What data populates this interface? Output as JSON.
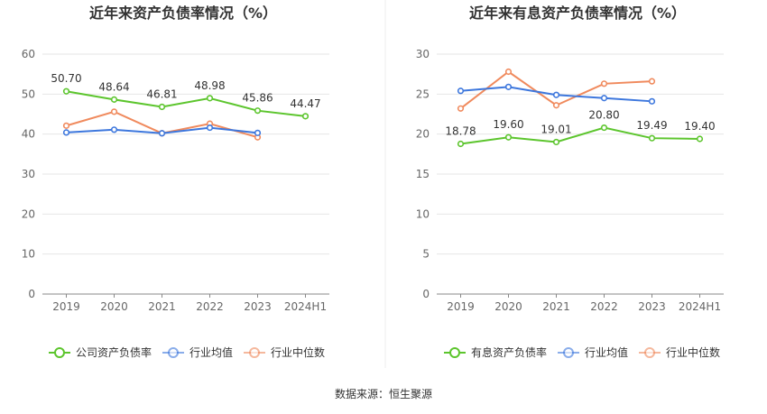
{
  "footer": {
    "source_text": "数据来源：恒生聚源"
  },
  "colors": {
    "company": "#5cc52d",
    "industry_avg": "#3d77dd",
    "industry_median": "#f08a5d"
  },
  "chart_data": [
    {
      "type": "line",
      "title": "近年来资产负债率情况（%）",
      "categories": [
        "2019",
        "2020",
        "2021",
        "2022",
        "2023",
        "2024H1"
      ],
      "yticks": [
        "0",
        "10",
        "20",
        "30",
        "40",
        "50",
        "60"
      ],
      "ylim": [
        0,
        60
      ],
      "grid": true,
      "legend": "bottom",
      "series": [
        {
          "name": "公司资产负债率",
          "values": [
            50.7,
            48.64,
            46.81,
            48.98,
            45.86,
            44.47
          ],
          "labels": [
            "50.70",
            "48.64",
            "46.81",
            "48.98",
            "45.86",
            "44.47"
          ],
          "color": "#5cc52d"
        },
        {
          "name": "行业均值",
          "values": [
            40.4,
            41.1,
            40.2,
            41.6,
            40.3,
            null
          ],
          "color": "#3d77dd"
        },
        {
          "name": "行业中位数",
          "values": [
            42.1,
            45.6,
            40.2,
            42.6,
            39.2,
            null
          ],
          "color": "#f08a5d"
        }
      ]
    },
    {
      "type": "line",
      "title": "近年来有息资产负债率情况（%）",
      "categories": [
        "2019",
        "2020",
        "2021",
        "2022",
        "2023",
        "2024H1"
      ],
      "yticks": [
        "0",
        "5",
        "10",
        "15",
        "20",
        "25",
        "30"
      ],
      "ylim": [
        0,
        30
      ],
      "grid": true,
      "legend": "bottom",
      "series": [
        {
          "name": "有息资产负债率",
          "values": [
            18.78,
            19.6,
            19.01,
            20.8,
            19.49,
            19.4
          ],
          "labels": [
            "18.78",
            "19.60",
            "19.01",
            "20.80",
            "19.49",
            "19.40"
          ],
          "color": "#5cc52d"
        },
        {
          "name": "行业均值",
          "values": [
            25.4,
            25.9,
            24.9,
            24.5,
            24.1,
            null
          ],
          "color": "#3d77dd"
        },
        {
          "name": "行业中位数",
          "values": [
            23.2,
            27.8,
            23.6,
            26.3,
            26.6,
            null
          ],
          "color": "#f08a5d"
        }
      ]
    }
  ]
}
